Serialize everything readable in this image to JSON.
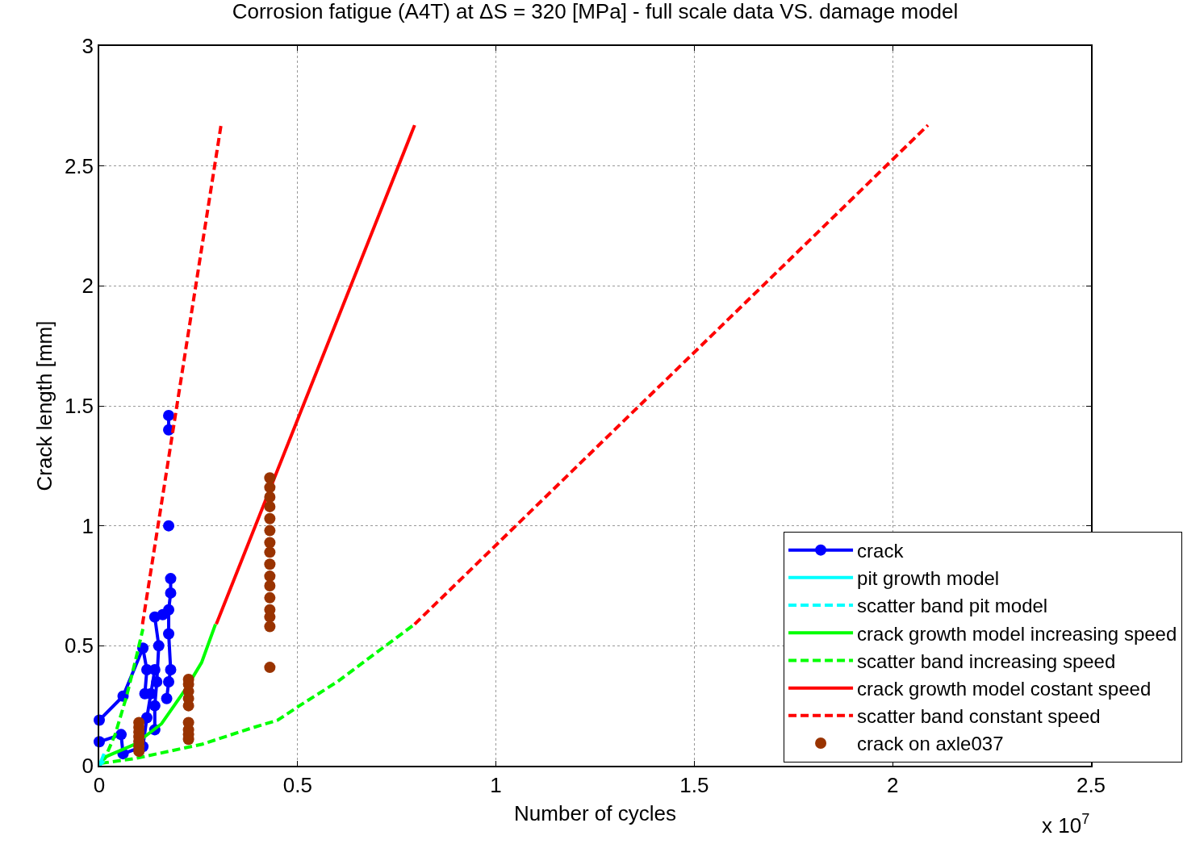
{
  "chart_data": {
    "type": "line",
    "title": "Corrosion fatigue (A4T) at ΔS = 320 [MPa] - full scale data VS. damage model",
    "xlabel": "Number of cycles",
    "ylabel": "Crack length [mm]",
    "annotations": [
      "x 10$^{7}$"
    ],
    "xlim": [
      0,
      2.5
    ],
    "xticks": [
      0,
      0.5,
      1,
      1.5,
      2,
      2.5
    ],
    "ylim": [
      0,
      3
    ],
    "yticks": [
      0,
      0.5,
      1,
      1.5,
      2,
      2.5,
      3
    ],
    "grid": true,
    "legend": "bottom right",
    "series": [
      {
        "name": "crack",
        "color": "#0000ff",
        "marker": "circle",
        "line_style": "solid",
        "x": [
          0,
          0.06,
          0.11,
          0.12,
          0.115,
          null,
          0,
          0.055,
          0.06,
          0.11,
          0.12,
          0.13,
          0.14,
          null,
          0.14,
          0.14,
          0.145,
          0.15,
          0.14,
          0.16,
          null,
          0.17,
          0.175,
          0.18,
          0.175,
          0.175,
          0.18,
          0.18,
          null,
          0.175,
          null,
          0.175,
          0.175
        ],
        "values": [
          0.19,
          0.29,
          0.49,
          0.4,
          0.3,
          null,
          0.1,
          0.13,
          0.05,
          0.08,
          0.2,
          0.3,
          0.4,
          null,
          0.15,
          0.25,
          0.35,
          0.5,
          0.62,
          0.63,
          null,
          0.28,
          0.35,
          0.4,
          0.55,
          0.65,
          0.72,
          0.78,
          null,
          1.0,
          null,
          1.4,
          1.46
        ]
      },
      {
        "name": "pit growth model",
        "color": "#00ffff",
        "line_style": "solid",
        "x": [
          0,
          0.012
        ],
        "values": [
          0,
          0.05
        ]
      },
      {
        "name": "scatter band pit model",
        "color": "#00ffff",
        "line_style": "dashed",
        "x": [
          0,
          0.012
        ],
        "values": [
          0,
          0.02
        ]
      },
      {
        "name": "crack growth model increasing speed",
        "color": "#00ff00",
        "line_style": "solid",
        "x": [
          0.004,
          0.02,
          0.09,
          0.157,
          0.218,
          0.258,
          0.293
        ],
        "values": [
          0.02,
          0.04,
          0.09,
          0.175,
          0.32,
          0.43,
          0.59
        ]
      },
      {
        "name": "scatter band increasing speed",
        "color": "#00ff00",
        "line_style": "dashed",
        "x": [
          0.004,
          0.014,
          0.04,
          0.069,
          0.09,
          0.11,
          null,
          0.004,
          0.09,
          0.26,
          0.38,
          0.45,
          0.5,
          0.6,
          0.665,
          0.795
        ],
        "values": [
          0.02,
          0.03,
          0.13,
          0.29,
          0.43,
          0.57,
          null,
          0.01,
          0.03,
          0.09,
          0.155,
          0.19,
          0.245,
          0.35,
          0.43,
          0.59
        ]
      },
      {
        "name": "crack growth model costant speed",
        "color": "#ff0000",
        "line_style": "solid",
        "x": [
          0.295,
          0.795
        ],
        "values": [
          0.59,
          2.67
        ]
      },
      {
        "name": "scatter band constant speed",
        "color": "#ff0000",
        "line_style": "dashed",
        "x": [
          0.109,
          0.307,
          null,
          0.795,
          2.089
        ],
        "values": [
          0.59,
          2.67,
          null,
          0.59,
          2.67
        ]
      },
      {
        "name": "crack on axle037",
        "type": "scatter",
        "color": "#993300",
        "marker": "circle",
        "x": [
          0.1,
          0.1,
          0.1,
          0.1,
          0.1,
          0.1,
          0.1,
          0.225,
          0.225,
          0.225,
          0.225,
          0.225,
          0.225,
          0.225,
          0.225,
          0.225,
          0.43,
          0.43,
          0.43,
          0.43,
          0.43,
          0.43,
          0.43,
          0.43,
          0.43,
          0.43,
          0.43,
          0.43,
          0.43,
          0.43,
          0.43,
          0.43
        ],
        "values": [
          0.06,
          0.08,
          0.1,
          0.12,
          0.14,
          0.16,
          0.18,
          0.11,
          0.13,
          0.15,
          0.18,
          0.25,
          0.28,
          0.31,
          0.34,
          0.36,
          0.41,
          0.58,
          0.62,
          0.65,
          0.7,
          0.75,
          0.79,
          0.84,
          0.89,
          0.93,
          0.98,
          1.03,
          1.08,
          1.12,
          1.16,
          1.2
        ]
      }
    ]
  }
}
